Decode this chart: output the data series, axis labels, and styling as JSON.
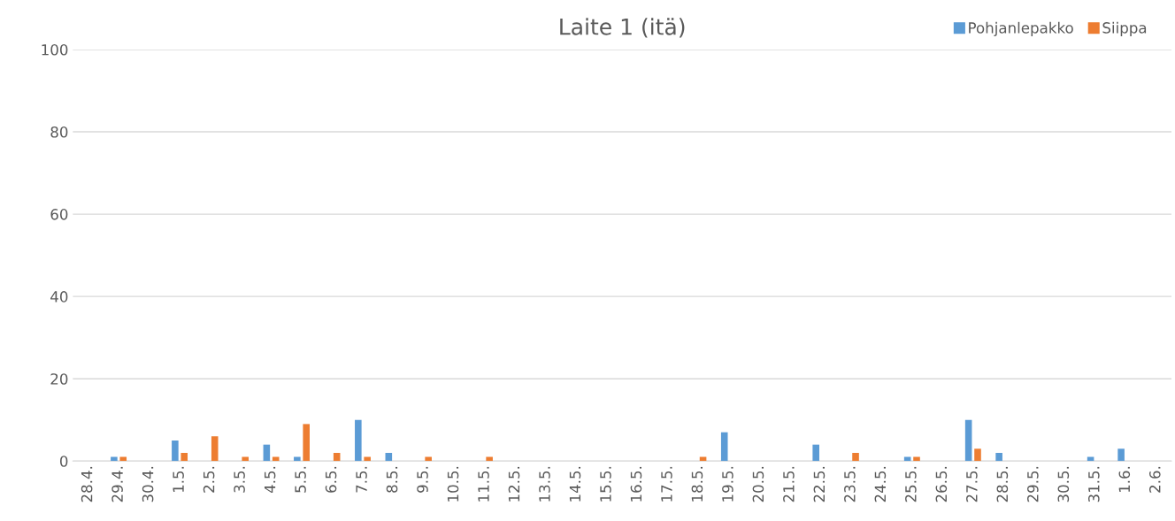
{
  "chart_data": {
    "type": "bar",
    "title": "Laite 1 (itä)",
    "categories": [
      "28.4.",
      "29.4.",
      "30.4.",
      "1.5.",
      "2.5.",
      "3.5.",
      "4.5.",
      "5.5.",
      "6.5.",
      "7.5.",
      "8.5.",
      "9.5.",
      "10.5.",
      "11.5.",
      "12.5.",
      "13.5.",
      "14.5.",
      "15.5.",
      "16.5.",
      "17.5.",
      "18.5.",
      "19.5.",
      "20.5.",
      "21.5.",
      "22.5.",
      "23.5.",
      "24.5.",
      "25.5.",
      "26.5.",
      "27.5.",
      "28.5.",
      "29.5.",
      "30.5.",
      "31.5.",
      "1.6.",
      "2.6."
    ],
    "series": [
      {
        "name": "Pohjanlepakko",
        "color": "#5b9bd5",
        "values": [
          0,
          1,
          0,
          5,
          0,
          0,
          4,
          1,
          0,
          10,
          2,
          0,
          0,
          0,
          0,
          0,
          0,
          0,
          0,
          0,
          0,
          7,
          0,
          0,
          4,
          0,
          0,
          1,
          0,
          10,
          2,
          0,
          0,
          1,
          3,
          0
        ]
      },
      {
        "name": "Siippa",
        "color": "#ed7d31",
        "values": [
          0,
          1,
          0,
          2,
          6,
          1,
          1,
          9,
          2,
          1,
          0,
          1,
          0,
          1,
          0,
          0,
          0,
          0,
          0,
          0,
          1,
          0,
          0,
          0,
          0,
          2,
          0,
          1,
          0,
          3,
          0,
          0,
          0,
          0,
          0,
          0
        ]
      }
    ],
    "ylim": [
      0,
      100
    ],
    "yticks": [
      0,
      20,
      40,
      60,
      80,
      100
    ],
    "grid": "y",
    "legend": "top right"
  }
}
